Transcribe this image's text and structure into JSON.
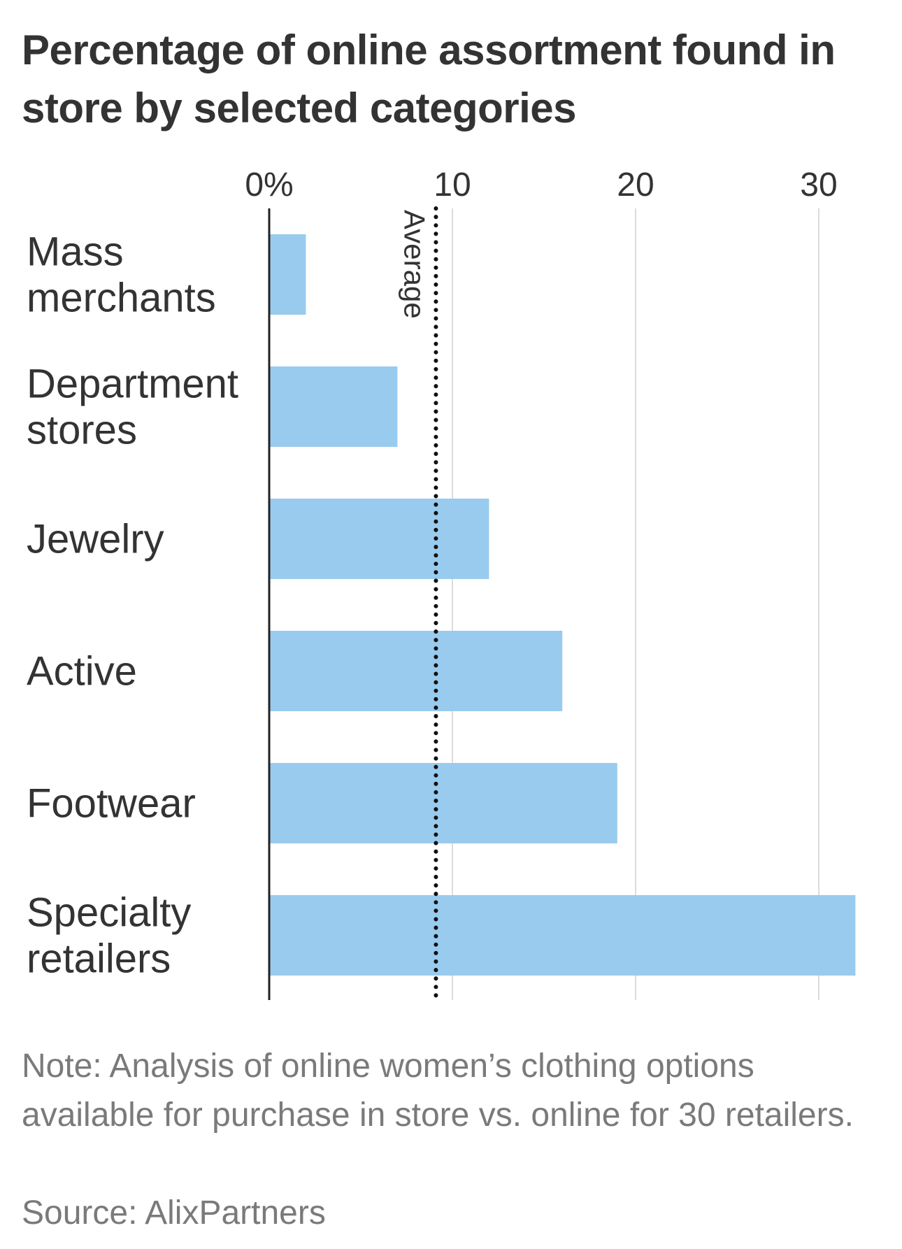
{
  "chart_data": {
    "type": "bar",
    "orientation": "horizontal",
    "title": "Percentage of online assortment found in store by selected categories",
    "categories": [
      [
        "Mass",
        "merchants"
      ],
      [
        "Department",
        "stores"
      ],
      [
        "Jewelry"
      ],
      [
        "Active"
      ],
      [
        "Footwear"
      ],
      [
        "Specialty",
        "retailers"
      ]
    ],
    "values": [
      2,
      7,
      12,
      16,
      19,
      32
    ],
    "xlim": [
      0,
      32
    ],
    "x_ticks": [
      {
        "value": 0,
        "label": "0%"
      },
      {
        "value": 10,
        "label": "10"
      },
      {
        "value": 20,
        "label": "20"
      },
      {
        "value": 30,
        "label": "30"
      }
    ],
    "grid": true,
    "average": {
      "value": 9.1,
      "label": "Average"
    },
    "bar_color": "#99cbee",
    "note": "Note: Analysis of online women’s clothing options available for purchase in store vs. online for 30 retailers.",
    "source": "Source: AlixPartners"
  }
}
